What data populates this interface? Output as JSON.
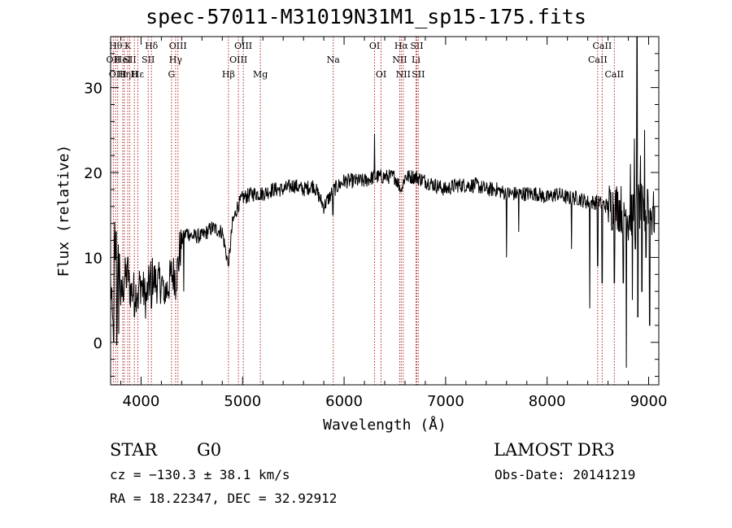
{
  "chart_data": {
    "type": "line",
    "title": "spec-57011-M31019N31M1_sp15-175.fits",
    "xlabel": "Wavelength (Å)",
    "ylabel": "Flux (relative)",
    "xlim": [
      3700,
      9100
    ],
    "ylim": [
      -5,
      36
    ],
    "x_ticks": [
      4000,
      5000,
      6000,
      7000,
      8000,
      9000
    ],
    "x_tick_labels": [
      "4000",
      "5000",
      "6000",
      "7000",
      "8000",
      "9000"
    ],
    "y_ticks": [
      0,
      10,
      20,
      30
    ],
    "y_tick_labels": [
      "0",
      "10",
      "20",
      "30"
    ],
    "grid": false,
    "line_color": "#000000",
    "marker_color": "#b22222",
    "spectrum_anchors": [
      [
        3700,
        7
      ],
      [
        3720,
        2
      ],
      [
        3740,
        13
      ],
      [
        3760,
        1
      ],
      [
        3780,
        12
      ],
      [
        3800,
        5
      ],
      [
        3850,
        8
      ],
      [
        3900,
        6
      ],
      [
        3950,
        6
      ],
      [
        4000,
        7
      ],
      [
        4050,
        5
      ],
      [
        4100,
        8
      ],
      [
        4150,
        7
      ],
      [
        4200,
        7
      ],
      [
        4250,
        6
      ],
      [
        4300,
        8
      ],
      [
        4350,
        8
      ],
      [
        4400,
        12
      ],
      [
        4450,
        13
      ],
      [
        4500,
        12.5
      ],
      [
        4600,
        12.5
      ],
      [
        4700,
        13.5
      ],
      [
        4800,
        13
      ],
      [
        4860,
        9
      ],
      [
        4900,
        14
      ],
      [
        4950,
        16
      ],
      [
        5000,
        17
      ],
      [
        5100,
        17.5
      ],
      [
        5200,
        17.5
      ],
      [
        5300,
        18
      ],
      [
        5400,
        18
      ],
      [
        5500,
        18.5
      ],
      [
        5600,
        18
      ],
      [
        5700,
        18.5
      ],
      [
        5800,
        16
      ],
      [
        5900,
        18
      ],
      [
        6000,
        19
      ],
      [
        6100,
        19
      ],
      [
        6200,
        19
      ],
      [
        6300,
        19.5
      ],
      [
        6400,
        19.5
      ],
      [
        6500,
        19.5
      ],
      [
        6563,
        18
      ],
      [
        6600,
        19.5
      ],
      [
        6700,
        19.5
      ],
      [
        6800,
        19
      ],
      [
        6900,
        18.5
      ],
      [
        7000,
        18
      ],
      [
        7100,
        18.5
      ],
      [
        7200,
        18.5
      ],
      [
        7300,
        18.5
      ],
      [
        7400,
        18
      ],
      [
        7500,
        18
      ],
      [
        7600,
        17.5
      ],
      [
        7700,
        17.5
      ],
      [
        7800,
        17.5
      ],
      [
        7900,
        17.5
      ],
      [
        8000,
        17
      ],
      [
        8100,
        17.5
      ],
      [
        8200,
        17
      ],
      [
        8300,
        17
      ],
      [
        8400,
        16.5
      ],
      [
        8500,
        16.5
      ],
      [
        8600,
        16
      ],
      [
        8700,
        16
      ],
      [
        8800,
        15
      ],
      [
        8900,
        16
      ],
      [
        9000,
        15
      ],
      [
        9100,
        15
      ]
    ],
    "spectrum_features": [
      [
        3730,
        0
      ],
      [
        3755,
        13
      ],
      [
        3780,
        1
      ],
      [
        3870,
        10
      ],
      [
        3935,
        3
      ],
      [
        3970,
        4
      ],
      [
        4102,
        4
      ],
      [
        4226,
        5
      ],
      [
        4340,
        5
      ],
      [
        4380,
        13
      ],
      [
        4420,
        6
      ],
      [
        4861,
        9
      ],
      [
        5890,
        15
      ],
      [
        6300,
        24.5
      ],
      [
        6563,
        18
      ],
      [
        7600,
        10
      ],
      [
        7720,
        13
      ],
      [
        8240,
        11
      ],
      [
        8420,
        4
      ],
      [
        8498,
        9
      ],
      [
        8542,
        7
      ],
      [
        8662,
        7
      ],
      [
        8700,
        14
      ],
      [
        8750,
        7
      ],
      [
        8780,
        -3
      ],
      [
        8800,
        12
      ],
      [
        8820,
        21
      ],
      [
        8840,
        5
      ],
      [
        8860,
        24
      ],
      [
        8870,
        11
      ],
      [
        8885,
        37
      ],
      [
        8895,
        3
      ],
      [
        8920,
        22
      ],
      [
        8935,
        6
      ],
      [
        8960,
        25
      ],
      [
        8975,
        10
      ],
      [
        8990,
        18
      ],
      [
        9010,
        2
      ],
      [
        9040,
        16
      ]
    ],
    "lines": [
      {
        "wavelength": 3727,
        "label": "OII",
        "row": 1
      },
      {
        "wavelength": 3750,
        "label": "Hθ",
        "row": 0
      },
      {
        "wavelength": 3770,
        "label": "OIII",
        "row": 2
      },
      {
        "wavelength": 3820,
        "label": "HeI",
        "row": 1
      },
      {
        "wavelength": 3835,
        "label": "Hη",
        "row": 2
      },
      {
        "wavelength": 3869,
        "label": "K",
        "row": 0
      },
      {
        "wavelength": 3889,
        "label": "SII",
        "row": 1
      },
      {
        "wavelength": 3934,
        "label": "H",
        "row": 2
      },
      {
        "wavelength": 3968,
        "label": "Hε",
        "row": 2
      },
      {
        "wavelength": 4070,
        "label": "SII",
        "row": 1
      },
      {
        "wavelength": 4102,
        "label": "Hδ",
        "row": 0
      },
      {
        "wavelength": 4300,
        "label": "G",
        "row": 2
      },
      {
        "wavelength": 4340,
        "label": "Hγ",
        "row": 1
      },
      {
        "wavelength": 4363,
        "label": "OIII",
        "row": 0
      },
      {
        "wavelength": 4861,
        "label": "Hβ",
        "row": 2
      },
      {
        "wavelength": 4959,
        "label": "OIII",
        "row": 1
      },
      {
        "wavelength": 5007,
        "label": "OIII",
        "row": 0
      },
      {
        "wavelength": 5175,
        "label": "Mg",
        "row": 2
      },
      {
        "wavelength": 5893,
        "label": "Na",
        "row": 1
      },
      {
        "wavelength": 6300,
        "label": "OI",
        "row": 0
      },
      {
        "wavelength": 6364,
        "label": "OI",
        "row": 2
      },
      {
        "wavelength": 6548,
        "label": "NII",
        "row": 1
      },
      {
        "wavelength": 6563,
        "label": "Hα",
        "row": 0
      },
      {
        "wavelength": 6583,
        "label": "NII",
        "row": 2
      },
      {
        "wavelength": 6708,
        "label": "Li",
        "row": 1
      },
      {
        "wavelength": 6716,
        "label": "SII",
        "row": 0
      },
      {
        "wavelength": 6731,
        "label": "SII",
        "row": 2
      },
      {
        "wavelength": 8498,
        "label": "CaII",
        "row": 1
      },
      {
        "wavelength": 8542,
        "label": "CaII",
        "row": 0
      },
      {
        "wavelength": 8662,
        "label": "CaII",
        "row": 2
      }
    ]
  },
  "info": {
    "class_label": "STAR",
    "subclass": "G0",
    "survey": "LAMOST DR3",
    "cz": "cz = −130.3 ± 38.1 km/s",
    "obs_date": "Obs-Date: 20141219",
    "coords": "RA =  18.22347, DEC =  32.92912"
  }
}
